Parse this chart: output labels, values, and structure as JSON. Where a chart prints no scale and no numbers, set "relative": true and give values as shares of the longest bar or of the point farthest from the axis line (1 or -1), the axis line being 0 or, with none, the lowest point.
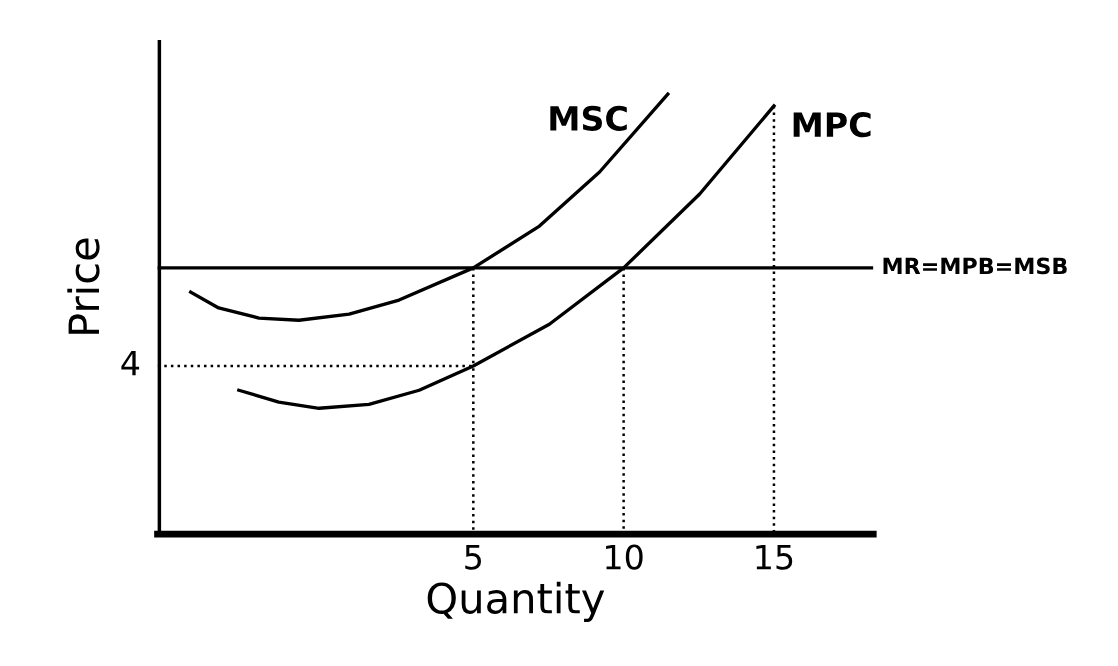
{
  "chart_data": {
    "type": "line",
    "relative": true,
    "xlabel": "Quantity",
    "ylabel": "Price",
    "xlim": [
      -5.5,
      18.3
    ],
    "xticks": [
      5,
      10,
      15
    ],
    "tick_labels": "x",
    "grid": false,
    "legend": false,
    "annotations": [
      {
        "text": "4",
        "x": -5.5,
        "y": 0.382
      }
    ],
    "ref_lines": [
      {
        "axis": "x",
        "value": -5.5,
        "color": "#000000",
        "line_style": "solid"
      }
    ],
    "series": [
      {
        "name": "MSC",
        "color": "#000000",
        "line_style": "solid",
        "x": [
          -4.4,
          -3.47,
          -2.13,
          -0.8,
          0.87,
          2.53,
          5,
          7.2,
          9.2,
          11.47
        ],
        "values": [
          0.55,
          0.514,
          0.491,
          0.486,
          0.5,
          0.532,
          0.605,
          0.7,
          0.823,
          1.0
        ]
      },
      {
        "name": "MPC",
        "color": "#000000",
        "line_style": "solid",
        "x": [
          -2.8,
          -1.47,
          -0.13,
          1.53,
          3.2,
          5,
          7.53,
          10,
          12.53,
          15
        ],
        "values": [
          0.327,
          0.3,
          0.286,
          0.295,
          0.327,
          0.382,
          0.477,
          0.605,
          0.773,
          0.973
        ]
      },
      {
        "name": "MR=MPB=MSB",
        "color": "#000000",
        "line_style": "solid",
        "x": [
          -5.5,
          18.3
        ],
        "values": [
          0.605,
          0.605
        ]
      },
      {
        "color": "#000000",
        "line_style": "dotted",
        "x": [
          -5.5,
          5,
          5
        ],
        "values": [
          0.382,
          0.382,
          0
        ]
      },
      {
        "color": "#000000",
        "line_style": "dotted",
        "x": [
          5,
          5
        ],
        "values": [
          0.605,
          0.382
        ]
      },
      {
        "color": "#000000",
        "line_style": "dotted",
        "x": [
          10,
          10
        ],
        "values": [
          0.605,
          0
        ]
      },
      {
        "color": "#000000",
        "line_style": "dotted",
        "x": [
          15,
          15
        ],
        "values": [
          0.973,
          0
        ]
      }
    ]
  }
}
